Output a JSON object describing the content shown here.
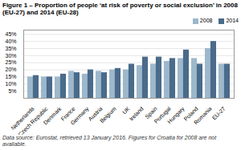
{
  "chart_data": {
    "type": "bar",
    "title": "Figure 1 – Proportion of people ‘at risk of poverty or social exclusion’ in 2008 (EU-27) and 2014 (EU-28)",
    "footer": "Data source: Eurostat, retrieved 13 January 2016. Figures for Croatia for 2008 are not available.",
    "categories": [
      "Netherlands",
      "Czech Republic",
      "Denmark",
      "France",
      "Germany",
      "Austria",
      "Belgium",
      "UK",
      "Ireland",
      "Spain",
      "Portugal",
      "Hungary",
      "Poland",
      "Romania",
      "EU-27"
    ],
    "series": [
      {
        "name": "2008",
        "color": "#9db8cc",
        "values": [
          15,
          15,
          15,
          19,
          17,
          19,
          20,
          20,
          23,
          24,
          26,
          28,
          28,
          35,
          24
        ]
      },
      {
        "name": "2014",
        "color": "#4a6b8a",
        "values": [
          16,
          15,
          17,
          18,
          20,
          18,
          21,
          24,
          29,
          29,
          28,
          34,
          24,
          40,
          24
        ]
      }
    ],
    "ylim": [
      0,
      48
    ],
    "yticks": [
      {
        "value": 5,
        "label": "5%"
      },
      {
        "value": 10,
        "label": "10%"
      },
      {
        "value": 15,
        "label": "15%"
      },
      {
        "value": 20,
        "label": "20%"
      },
      {
        "value": 25,
        "label": "25%"
      },
      {
        "value": 30,
        "label": "30%"
      },
      {
        "value": 35,
        "label": "35%"
      },
      {
        "value": 40,
        "label": "40%"
      },
      {
        "value": 45,
        "label": "45%"
      }
    ],
    "grid": true,
    "legend": "right"
  }
}
